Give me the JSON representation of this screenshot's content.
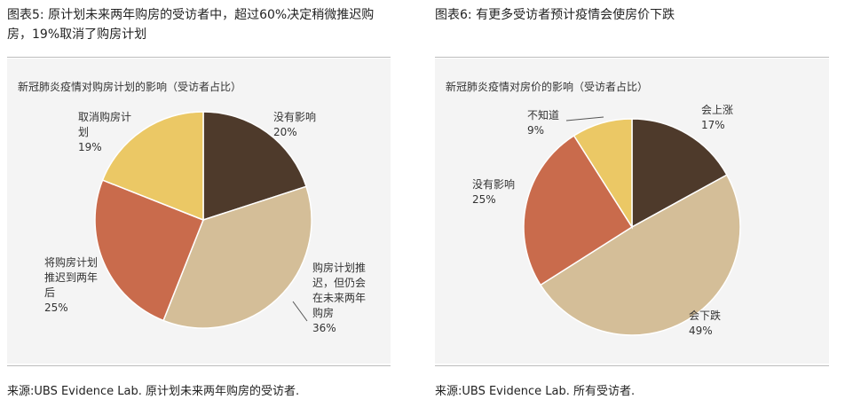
{
  "charts": [
    {
      "figure_title": "图表5: 原计划未来两年购房的受访者中，超过60%决定稍微推迟购房，19%取消了购房计划",
      "source": "来源:UBS Evidence Lab. 原计划未来两年购房的受访者."
    },
    {
      "figure_title": "图表6: 有更多受访者预计疫情会使房价下跌",
      "source": "来源:UBS Evidence Lab. 所有受访者."
    }
  ],
  "chart_data": [
    {
      "type": "pie",
      "title": "新冠肺炎疫情对购房计划的影响（受访者占比）",
      "slices": [
        {
          "label": [
            "没有影响"
          ],
          "pct": "20%",
          "value": 20,
          "color": "#4e3a2b"
        },
        {
          "label": [
            "购房计划推",
            "迟，但仍会",
            "在未来两年",
            "购房"
          ],
          "pct": "36%",
          "value": 36,
          "color": "#d4be98"
        },
        {
          "label": [
            "将购房计划",
            "推迟到两年",
            "后"
          ],
          "pct": "25%",
          "value": 25,
          "color": "#c96b4c"
        },
        {
          "label": [
            "取消购房计",
            "划"
          ],
          "pct": "19%",
          "value": 19,
          "color": "#ebc865"
        }
      ]
    },
    {
      "type": "pie",
      "title": "新冠肺炎疫情对房价的影响（受访者占比）",
      "slices": [
        {
          "label": [
            "会上涨"
          ],
          "pct": "17%",
          "value": 17,
          "color": "#4e3a2b"
        },
        {
          "label": [
            "会下跌"
          ],
          "pct": "49%",
          "value": 49,
          "color": "#d4be98"
        },
        {
          "label": [
            "没有影响"
          ],
          "pct": "25%",
          "value": 25,
          "color": "#c96b4c"
        },
        {
          "label": [
            "不知道"
          ],
          "pct": "9%",
          "value": 9,
          "color": "#ebc865"
        }
      ]
    }
  ]
}
